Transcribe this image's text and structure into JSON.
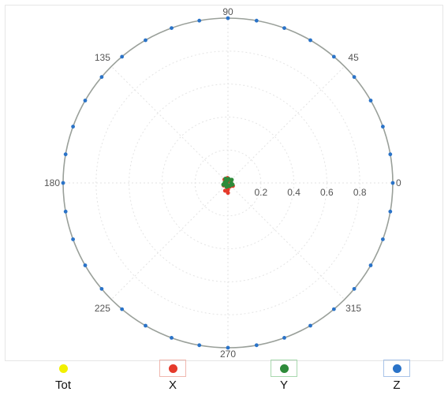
{
  "chart_data": {
    "type": "scatter",
    "subtype": "polar",
    "title": "",
    "radial_range": [
      0,
      1
    ],
    "radial_ticks": [
      "0.2",
      "0.4",
      "0.6",
      "0.8"
    ],
    "angular_ticks": [
      {
        "angle": 0,
        "label": "0"
      },
      {
        "angle": 45,
        "label": "45"
      },
      {
        "angle": 90,
        "label": "90"
      },
      {
        "angle": 135,
        "label": "135"
      },
      {
        "angle": 180,
        "label": "180"
      },
      {
        "angle": 225,
        "label": "225"
      },
      {
        "angle": 315,
        "label": "315"
      },
      {
        "angle": 270,
        "label": "270"
      }
    ],
    "grid": true,
    "legend_position": "bottom",
    "series": [
      {
        "name": "Tot",
        "color": "#f2f000",
        "points": []
      },
      {
        "name": "X",
        "color": "#e53a2b",
        "points": [
          [
            0.02,
            20
          ],
          [
            0.03,
            95
          ],
          [
            0.015,
            160
          ],
          [
            0.03,
            210
          ],
          [
            0.04,
            270
          ],
          [
            0.025,
            300
          ],
          [
            0.01,
            60
          ],
          [
            0.035,
            330
          ],
          [
            0.02,
            240
          ],
          [
            0.03,
            135
          ],
          [
            0.06,
            270
          ],
          [
            0.05,
            250
          ]
        ]
      },
      {
        "name": "Y",
        "color": "#2e8b3a",
        "points": [
          [
            0.02,
            0
          ],
          [
            0.03,
            40
          ],
          [
            0.025,
            80
          ],
          [
            0.03,
            120
          ],
          [
            0.02,
            170
          ],
          [
            0.03,
            200
          ],
          [
            0.025,
            250
          ],
          [
            0.02,
            290
          ],
          [
            0.03,
            340
          ],
          [
            0.015,
            100
          ],
          [
            0.01,
            220
          ],
          [
            0.02,
            310
          ]
        ]
      },
      {
        "name": "Z",
        "color": "#2a73c8",
        "points": [
          [
            1,
            0
          ],
          [
            1,
            10
          ],
          [
            1,
            20
          ],
          [
            1,
            30
          ],
          [
            1,
            40
          ],
          [
            1,
            50
          ],
          [
            1,
            60
          ],
          [
            1,
            70
          ],
          [
            1,
            80
          ],
          [
            1,
            90
          ],
          [
            1,
            100
          ],
          [
            1,
            110
          ],
          [
            1,
            120
          ],
          [
            1,
            130
          ],
          [
            1,
            140
          ],
          [
            1,
            150
          ],
          [
            1,
            160
          ],
          [
            1,
            170
          ],
          [
            1,
            180
          ],
          [
            1,
            190
          ],
          [
            1,
            200
          ],
          [
            1,
            210
          ],
          [
            1,
            220
          ],
          [
            1,
            230
          ],
          [
            1,
            240
          ],
          [
            1,
            250
          ],
          [
            1,
            260
          ],
          [
            1,
            270
          ],
          [
            1,
            280
          ],
          [
            1,
            290
          ],
          [
            1,
            300
          ],
          [
            1,
            310
          ],
          [
            1,
            320
          ],
          [
            1,
            330
          ],
          [
            1,
            340
          ],
          [
            1,
            350
          ]
        ]
      }
    ]
  },
  "legend": [
    {
      "label": "Tot",
      "color": "#f2f000",
      "boxed": false,
      "border": ""
    },
    {
      "label": "X",
      "color": "#e53a2b",
      "boxed": true,
      "border": "#f0b8b0"
    },
    {
      "label": "Y",
      "color": "#2e8b3a",
      "boxed": true,
      "border": "#a8d8ae"
    },
    {
      "label": "Z",
      "color": "#2a73c8",
      "boxed": true,
      "border": "#a9c4e8"
    }
  ]
}
